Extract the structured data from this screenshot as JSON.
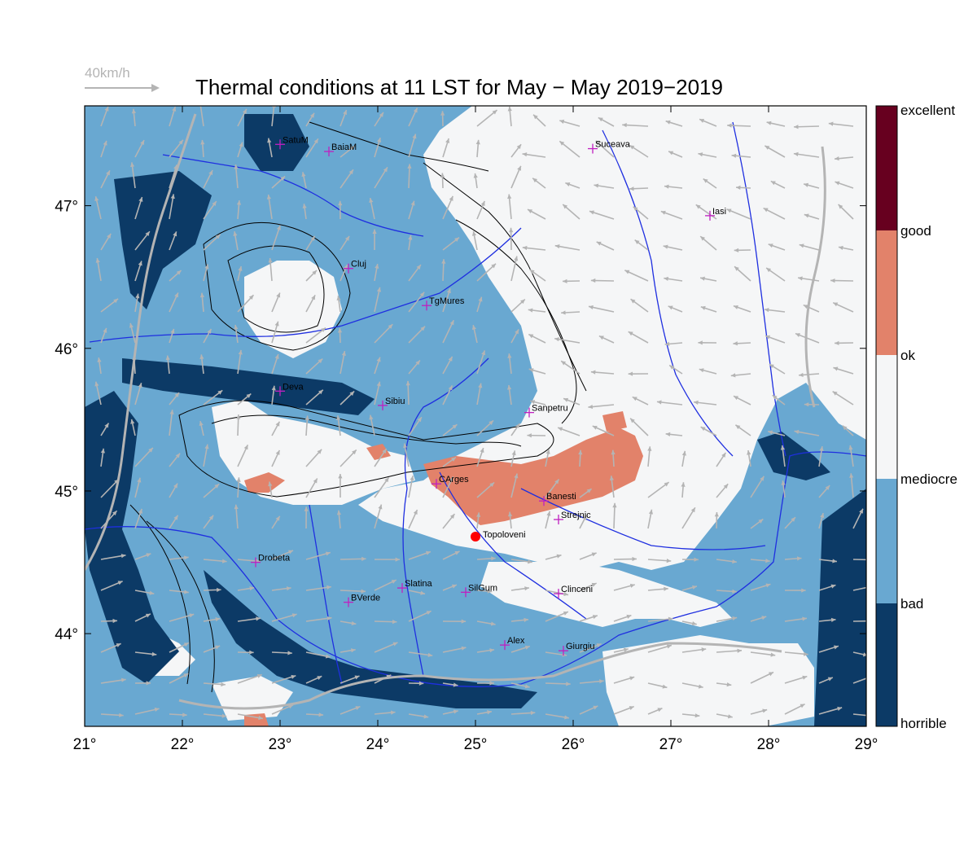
{
  "title": "Thermal conditions at 11 LST for May − May  2019−2019",
  "wind_reference": "40km/h",
  "x_ticks": [
    "21°",
    "22°",
    "23°",
    "24°",
    "25°",
    "26°",
    "27°",
    "28°",
    "29°"
  ],
  "y_ticks": [
    "47°",
    "46°",
    "45°",
    "44°"
  ],
  "colorbar": {
    "labels": [
      "excellent",
      "good",
      "ok",
      "mediocre",
      "bad",
      "horrible"
    ],
    "colors": [
      "#67001f",
      "#e2826a",
      "#f5f6f7",
      "#69a8d1",
      "#0c3a66"
    ]
  },
  "map": {
    "lon_range": [
      21,
      29
    ],
    "lat_range": [
      43.35,
      47.7
    ],
    "colors": {
      "horrible": "#0c3a66",
      "bad": "#69a8d1",
      "mediocre": "#f5f6f7",
      "ok": "#e2826a",
      "river": "#1f2fe0",
      "border": "#b4b4b4",
      "contour": "#000000",
      "wind": "#b4b4b4",
      "city_marker": "#c020c0",
      "site_marker": "#ff0000"
    },
    "cities": [
      {
        "name": "SatuM",
        "lon": 23.0,
        "lat": 47.43
      },
      {
        "name": "BaiaM",
        "lon": 23.5,
        "lat": 47.38
      },
      {
        "name": "Suceava",
        "lon": 26.2,
        "lat": 47.4
      },
      {
        "name": "Iasi",
        "lon": 27.4,
        "lat": 46.93
      },
      {
        "name": "Cluj",
        "lon": 23.7,
        "lat": 46.56
      },
      {
        "name": "TgMures",
        "lon": 24.5,
        "lat": 46.3
      },
      {
        "name": "Deva",
        "lon": 23.0,
        "lat": 45.7
      },
      {
        "name": "Sibiu",
        "lon": 24.05,
        "lat": 45.6
      },
      {
        "name": "Sanpetru",
        "lon": 25.55,
        "lat": 45.55
      },
      {
        "name": "CArges",
        "lon": 24.6,
        "lat": 45.05
      },
      {
        "name": "Banesti",
        "lon": 25.7,
        "lat": 44.93
      },
      {
        "name": "Strejnic",
        "lon": 25.85,
        "lat": 44.8
      },
      {
        "name": "Drobeta",
        "lon": 22.75,
        "lat": 44.5
      },
      {
        "name": "Slatina",
        "lon": 24.25,
        "lat": 44.32
      },
      {
        "name": "SilGum",
        "lon": 24.9,
        "lat": 44.29
      },
      {
        "name": "BVerde",
        "lon": 23.7,
        "lat": 44.22
      },
      {
        "name": "Clinceni",
        "lon": 25.85,
        "lat": 44.28
      },
      {
        "name": "Alex",
        "lon": 25.3,
        "lat": 43.92
      },
      {
        "name": "Giurgiu",
        "lon": 25.9,
        "lat": 43.88
      }
    ],
    "site": {
      "name": "Topoloveni",
      "lon": 25.0,
      "lat": 44.68
    }
  }
}
